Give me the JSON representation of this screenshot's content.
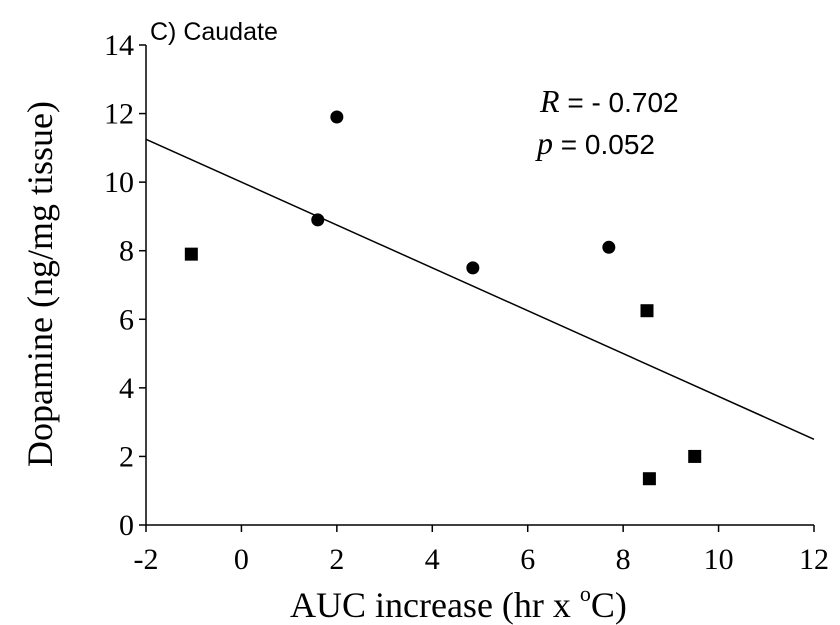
{
  "chart_data": {
    "type": "scatter",
    "panel_label": "C) Caudate",
    "xlabel_main": "AUC increase (hr x ",
    "xlabel_sup": "o",
    "xlabel_end": "C)",
    "ylabel": "Dopamine (ng/mg tissue)",
    "xlim": [
      -2,
      12
    ],
    "ylim": [
      0,
      14
    ],
    "xticks": [
      -2,
      0,
      2,
      4,
      6,
      8,
      10,
      12
    ],
    "yticks": [
      0,
      2,
      4,
      6,
      8,
      10,
      12,
      14
    ],
    "xtick_labels": [
      "-2",
      "0",
      "2",
      "4",
      "6",
      "8",
      "10",
      "12"
    ],
    "ytick_labels": [
      "0",
      "2",
      "4",
      "6",
      "8",
      "10",
      "12",
      "14"
    ],
    "series": [
      {
        "marker": "circle",
        "points": [
          [
            1.6,
            8.9
          ],
          [
            2.0,
            11.9
          ],
          [
            4.85,
            7.5
          ],
          [
            7.7,
            8.1
          ]
        ]
      },
      {
        "marker": "square",
        "points": [
          [
            -1.05,
            7.9
          ],
          [
            8.5,
            6.25
          ],
          [
            8.55,
            1.35
          ],
          [
            9.5,
            2.0
          ]
        ]
      }
    ],
    "trendline": {
      "x": [
        -2,
        12
      ],
      "y": [
        11.25,
        2.5
      ]
    },
    "annotation": {
      "r_symbol": "R",
      "r_value": " = - 0.702",
      "p_symbol": "p",
      "p_value": " = 0.052"
    },
    "colors": {
      "marker": "#000000",
      "axis": "#000000",
      "line": "#000000"
    }
  }
}
